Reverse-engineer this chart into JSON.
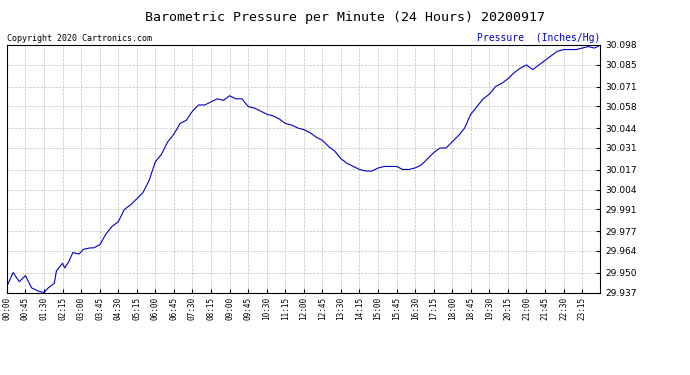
{
  "title": "Barometric Pressure per Minute (24 Hours) 20200917",
  "ylabel": "Pressure  (Inches/Hg)",
  "copyright": "Copyright 2020 Cartronics.com",
  "line_color": "#0000cc",
  "background_color": "#ffffff",
  "grid_color": "#b0b0b0",
  "title_color": "#000000",
  "ylabel_color": "#0000cc",
  "copyright_color": "#000000",
  "ylim_min": 29.937,
  "ylim_max": 30.098,
  "yticks": [
    29.937,
    29.95,
    29.964,
    29.977,
    29.991,
    30.004,
    30.017,
    30.031,
    30.044,
    30.058,
    30.071,
    30.085,
    30.098
  ],
  "xtick_labels": [
    "00:00",
    "00:45",
    "01:30",
    "02:15",
    "03:00",
    "03:45",
    "04:30",
    "05:15",
    "06:00",
    "06:45",
    "07:30",
    "08:15",
    "09:00",
    "09:45",
    "10:30",
    "11:15",
    "12:00",
    "12:45",
    "13:30",
    "14:15",
    "15:00",
    "15:45",
    "16:30",
    "17:15",
    "18:00",
    "18:45",
    "19:30",
    "20:15",
    "21:00",
    "21:45",
    "22:30",
    "23:15"
  ],
  "keypoints_minutes": [
    0,
    15,
    30,
    45,
    60,
    75,
    90,
    100,
    115,
    120,
    135,
    140,
    150,
    160,
    175,
    185,
    200,
    210,
    225,
    240,
    255,
    270,
    285,
    300,
    315,
    330,
    345,
    360,
    375,
    390,
    405,
    420,
    435,
    450,
    465,
    480,
    495,
    510,
    525,
    540,
    555,
    570,
    585,
    600,
    615,
    630,
    645,
    660,
    675,
    690,
    705,
    720,
    735,
    750,
    765,
    780,
    795,
    810,
    825,
    840,
    855,
    870,
    885,
    900,
    915,
    930,
    945,
    960,
    975,
    990,
    1005,
    1020,
    1035,
    1050,
    1065,
    1080,
    1095,
    1110,
    1125,
    1140,
    1155,
    1170,
    1185,
    1200,
    1215,
    1230,
    1245,
    1260,
    1275,
    1290,
    1305,
    1320,
    1335,
    1350,
    1365,
    1380,
    1395,
    1410,
    1425,
    1439
  ],
  "keypoints_pressure": [
    29.941,
    29.95,
    29.944,
    29.948,
    29.94,
    29.938,
    29.937,
    29.94,
    29.943,
    29.951,
    29.956,
    29.953,
    29.957,
    29.963,
    29.962,
    29.965,
    29.966,
    29.966,
    29.968,
    29.975,
    29.98,
    29.983,
    29.991,
    29.994,
    29.998,
    30.002,
    30.01,
    30.022,
    30.027,
    30.035,
    30.04,
    30.047,
    30.049,
    30.055,
    30.059,
    30.059,
    30.061,
    30.063,
    30.062,
    30.065,
    30.063,
    30.063,
    30.058,
    30.057,
    30.055,
    30.053,
    30.052,
    30.05,
    30.047,
    30.046,
    30.044,
    30.043,
    30.041,
    30.038,
    30.036,
    30.032,
    30.029,
    30.024,
    30.021,
    30.019,
    30.017,
    30.016,
    30.016,
    30.018,
    30.019,
    30.019,
    30.019,
    30.017,
    30.017,
    30.018,
    30.02,
    30.024,
    30.028,
    30.031,
    30.031,
    30.035,
    30.039,
    30.044,
    30.053,
    30.058,
    30.063,
    30.066,
    30.071,
    30.073,
    30.076,
    30.08,
    30.083,
    30.085,
    30.082,
    30.085,
    30.088,
    30.091,
    30.094,
    30.095,
    30.095,
    30.095,
    30.096,
    30.097,
    30.096,
    30.098
  ]
}
